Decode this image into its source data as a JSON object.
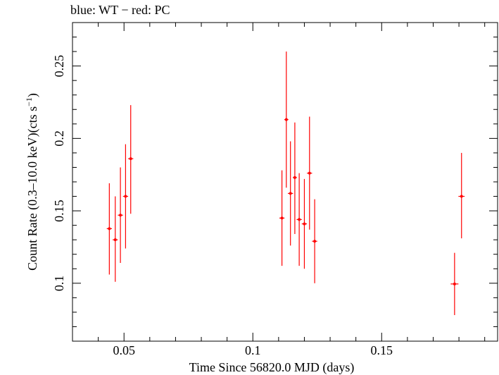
{
  "chart_data": {
    "type": "scatter",
    "title": "blue: WT − red: PC",
    "xlabel": "Time Since 56820.0 MJD (days)",
    "ylabel_main": "Count Rate (0.3–10.0 keV)(cts s",
    "ylabel_sup": "−1",
    "ylabel_end": ")",
    "xlim": [
      0.03,
      0.195
    ],
    "ylim": [
      0.06,
      0.28
    ],
    "x_ticks": [
      0.05,
      0.1,
      0.15
    ],
    "x_tick_labels": [
      "0.05",
      "0.1",
      "0.15"
    ],
    "y_ticks": [
      0.1,
      0.15,
      0.2,
      0.25
    ],
    "y_tick_labels": [
      "0.1",
      "0.15",
      "0.2",
      "0.25"
    ],
    "grid": false,
    "series": [
      {
        "color": "#ff0000",
        "points": [
          {
            "x": 0.0443,
            "y": 0.1377,
            "xerr": 0.001,
            "ylo": 0.106,
            "yhi": 0.169
          },
          {
            "x": 0.0466,
            "y": 0.13,
            "xerr": 0.001,
            "ylo": 0.101,
            "yhi": 0.16
          },
          {
            "x": 0.0486,
            "y": 0.147,
            "xerr": 0.001,
            "ylo": 0.114,
            "yhi": 0.18
          },
          {
            "x": 0.0506,
            "y": 0.16,
            "xerr": 0.001,
            "ylo": 0.124,
            "yhi": 0.196
          },
          {
            "x": 0.0526,
            "y": 0.186,
            "xerr": 0.001,
            "ylo": 0.148,
            "yhi": 0.223
          },
          {
            "x": 0.1113,
            "y": 0.145,
            "xerr": 0.001,
            "ylo": 0.112,
            "yhi": 0.178
          },
          {
            "x": 0.113,
            "y": 0.213,
            "xerr": 0.0008,
            "ylo": 0.166,
            "yhi": 0.26
          },
          {
            "x": 0.1146,
            "y": 0.162,
            "xerr": 0.001,
            "ylo": 0.126,
            "yhi": 0.198
          },
          {
            "x": 0.1163,
            "y": 0.173,
            "xerr": 0.0008,
            "ylo": 0.134,
            "yhi": 0.211
          },
          {
            "x": 0.118,
            "y": 0.144,
            "xerr": 0.001,
            "ylo": 0.112,
            "yhi": 0.176
          },
          {
            "x": 0.12,
            "y": 0.141,
            "xerr": 0.001,
            "ylo": 0.11,
            "yhi": 0.172
          },
          {
            "x": 0.122,
            "y": 0.176,
            "xerr": 0.001,
            "ylo": 0.137,
            "yhi": 0.215
          },
          {
            "x": 0.124,
            "y": 0.129,
            "xerr": 0.001,
            "ylo": 0.1,
            "yhi": 0.158
          },
          {
            "x": 0.1783,
            "y": 0.0995,
            "xerr": 0.0015,
            "ylo": 0.078,
            "yhi": 0.121
          },
          {
            "x": 0.181,
            "y": 0.16,
            "xerr": 0.0012,
            "ylo": 0.131,
            "yhi": 0.19
          }
        ]
      }
    ]
  }
}
